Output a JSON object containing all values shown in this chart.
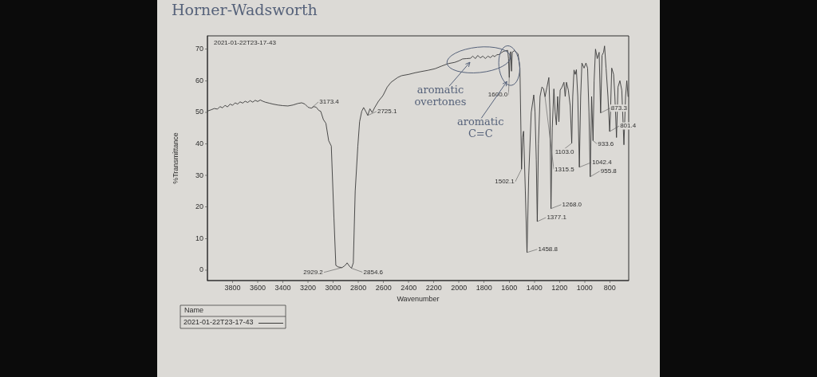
{
  "chart_data": {
    "type": "line",
    "title": "Horner-Wadsworth",
    "subtitle": "2021-01-22T23-17-43",
    "xlabel": "Wavenumber",
    "ylabel": "%Transmittance",
    "legend_title": "Name",
    "legend": "bottom left",
    "xlim": [
      4000,
      650
    ],
    "xticks": [
      3800,
      3600,
      3400,
      3200,
      3000,
      2800,
      2600,
      2400,
      2200,
      2000,
      1800,
      1600,
      1400,
      1200,
      1000,
      800
    ],
    "ylim": [
      -3.3,
      74.2
    ],
    "yticks": [
      0,
      10,
      20,
      30,
      40,
      50,
      60,
      70
    ],
    "grid": false,
    "marker": "none",
    "series": [
      {
        "name": "2021-01-22T23-17-43",
        "color": "#3a3a3a",
        "x": [
          3998,
          3970,
          3945,
          3920,
          3900,
          3880,
          3860,
          3840,
          3820,
          3800,
          3780,
          3760,
          3740,
          3720,
          3700,
          3680,
          3660,
          3640,
          3620,
          3600,
          3580,
          3560,
          3540,
          3510,
          3480,
          3440,
          3400,
          3360,
          3320,
          3280,
          3250,
          3225,
          3200,
          3185,
          3173.4,
          3155,
          3135,
          3115,
          3099,
          3078,
          3058,
          3036,
          3015,
          2994,
          2979,
          2960,
          2929.2,
          2905,
          2889,
          2870,
          2854.6,
          2840,
          2825,
          2804,
          2790,
          2773,
          2758,
          2740,
          2725.1,
          2708,
          2690,
          2670,
          2640,
          2604,
          2570,
          2540,
          2488,
          2456,
          2400,
          2350,
          2300,
          2245,
          2190,
          2140,
          2087,
          2034,
          2000,
          1971,
          1940,
          1908,
          1890,
          1870,
          1850,
          1830,
          1810,
          1790,
          1770,
          1750,
          1730,
          1715,
          1700,
          1680,
          1665,
          1650,
          1630,
          1612,
          1606,
          1600.0,
          1594,
          1588,
          1582,
          1576,
          1560,
          1545,
          1530,
          1515,
          1502.1,
          1494,
          1486,
          1472,
          1458.8,
          1445,
          1425,
          1405,
          1395,
          1385,
          1377.1,
          1368,
          1355,
          1340,
          1327,
          1315.5,
          1300,
          1285,
          1276,
          1268.0,
          1258,
          1245,
          1235,
          1225,
          1215,
          1205,
          1195,
          1180,
          1165,
          1155,
          1145,
          1130,
          1115,
          1103.0,
          1095,
          1085,
          1075,
          1066,
          1055,
          1042.4,
          1032,
          1022,
          1005,
          990,
          977,
          966,
          955.8,
          945,
          933.6,
          925,
          914,
          900,
          885,
          873.3,
          862,
          850,
          842,
          830,
          815,
          801.4,
          795,
          785,
          770,
          760,
          747,
          735,
          720,
          705,
          688,
          675,
          665,
          655
        ],
        "values": [
          50.4,
          50.8,
          51.2,
          51.0,
          51.8,
          51.4,
          52.2,
          51.7,
          52.6,
          52.2,
          53.0,
          52.6,
          53.3,
          52.9,
          53.5,
          53.1,
          53.7,
          53.2,
          53.8,
          53.4,
          53.9,
          53.5,
          53.2,
          52.9,
          52.6,
          52.3,
          52.1,
          52.0,
          52.3,
          52.8,
          53.0,
          52.6,
          51.6,
          51.4,
          51.3,
          51.8,
          51.6,
          50.6,
          50.3,
          47.7,
          46.5,
          41.0,
          39.3,
          16.6,
          1.5,
          1.0,
          0.8,
          1.5,
          2.3,
          1.2,
          0.6,
          2.3,
          25.0,
          39.3,
          47.0,
          50.3,
          51.5,
          50.2,
          49.0,
          51.1,
          49.9,
          51.5,
          53.5,
          55.3,
          58.0,
          59.5,
          61.0,
          61.6,
          62.0,
          62.5,
          62.9,
          63.3,
          63.8,
          64.6,
          65.4,
          65.8,
          66.3,
          66.9,
          67.0,
          67.1,
          67.8,
          67.0,
          68.0,
          67.2,
          67.8,
          67.0,
          67.8,
          67.3,
          68.0,
          67.6,
          68.2,
          68.3,
          68.8,
          69.2,
          69.5,
          69.6,
          67.0,
          61.0,
          68.5,
          69.2,
          63.0,
          69.0,
          69.5,
          69.0,
          68.5,
          64.0,
          32.0,
          42.0,
          44.0,
          25.0,
          5.6,
          30.0,
          50.0,
          55.5,
          50.0,
          35.0,
          15.4,
          40.0,
          55.0,
          58.0,
          57.5,
          54.9,
          58.0,
          61.0,
          50.0,
          19.5,
          45.0,
          57.4,
          50.0,
          46.0,
          55.0,
          47.0,
          57.0,
          58.0,
          59.5,
          55.0,
          59.5,
          57.0,
          52.0,
          40.2,
          55.0,
          63.4,
          62.0,
          63.5,
          55.0,
          32.6,
          55.0,
          65.6,
          64.0,
          65.6,
          64.0,
          50.0,
          29.6,
          55.0,
          41.0,
          60.0,
          70.0,
          67.0,
          69.0,
          49.8,
          68.0,
          69.0,
          71.0,
          64.0,
          55.0,
          43.9,
          50.0,
          64.0,
          62.0,
          55.0,
          42.0,
          58.0,
          60.0,
          57.0,
          39.7,
          55.0,
          60.0,
          55.0
        ]
      }
    ],
    "annotations": [
      {
        "text": "3173.4",
        "x": 3173.4,
        "y": 51.3
      },
      {
        "text": "2929.2",
        "x": 2929.2,
        "y": 0.8
      },
      {
        "text": "2854.6",
        "x": 2854.6,
        "y": 0.6
      },
      {
        "text": "2725.1",
        "x": 2725.1,
        "y": 49.0
      },
      {
        "text": "1600.0",
        "x": 1600.0,
        "y": 61.0
      },
      {
        "text": "1502.1",
        "x": 1502.1,
        "y": 32.0
      },
      {
        "text": "1458.8",
        "x": 1458.8,
        "y": 5.6
      },
      {
        "text": "1377.1",
        "x": 1377.1,
        "y": 15.4
      },
      {
        "text": "1268.0",
        "x": 1268.0,
        "y": 19.5
      },
      {
        "text": "1315.5",
        "x": 1315.5,
        "y": 54.9
      },
      {
        "text": "1103.0",
        "x": 1103.0,
        "y": 40.2
      },
      {
        "text": "1042.4",
        "x": 1042.4,
        "y": 32.6
      },
      {
        "text": "933.6",
        "x": 933.6,
        "y": 41.0
      },
      {
        "text": "955.8",
        "x": 955.8,
        "y": 29.6
      },
      {
        "text": "873.3",
        "x": 873.3,
        "y": 49.8
      },
      {
        "text": "801.4",
        "x": 801.4,
        "y": 43.9
      },
      {
        "text": "aromatic overtones",
        "x": 1900,
        "y": 67.1
      },
      {
        "text": "aromatic C=C",
        "x": 1600.0,
        "y": 61.0
      }
    ]
  }
}
